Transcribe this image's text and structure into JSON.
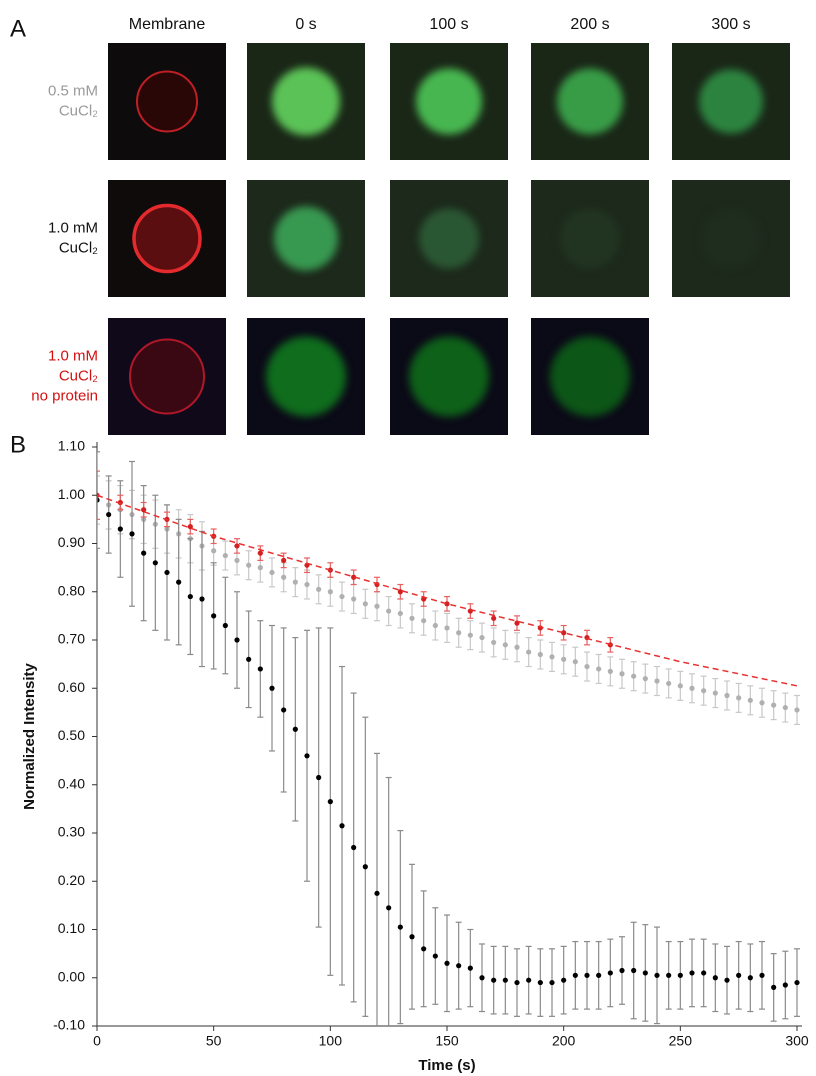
{
  "panels": {
    "a": "A",
    "b": "B"
  },
  "panel_a": {
    "columns": [
      "Membrane",
      "0 s",
      "100 s",
      "200 s",
      "300 s"
    ],
    "rows": [
      {
        "lines": [
          "0.5 mM",
          "CuCl₂"
        ]
      },
      {
        "lines": [
          "1.0 mM",
          "CuCl₂"
        ]
      },
      {
        "lines": [
          "1.0 mM",
          "CuCl₂",
          "no protein"
        ]
      }
    ]
  },
  "chart_data": {
    "type": "scatter",
    "xlabel": "Time (s)",
    "ylabel": "Normalized Intensity",
    "xlim": [
      0,
      300
    ],
    "ylim": [
      -0.1,
      1.1
    ],
    "xticks": [
      0,
      50,
      100,
      150,
      200,
      250,
      300
    ],
    "yticks": [
      {
        "value": 1.1,
        "label": "1.10"
      },
      {
        "value": 1.0,
        "label": "1.00"
      },
      {
        "value": 0.9,
        "label": "0.90"
      },
      {
        "value": 0.8,
        "label": "0.80"
      },
      {
        "value": 0.7,
        "label": "0.70"
      },
      {
        "value": 0.6,
        "label": "0.60"
      },
      {
        "value": 0.5,
        "label": "0.50"
      },
      {
        "value": 0.4,
        "label": "0.40"
      },
      {
        "value": 0.3,
        "label": "0.30"
      },
      {
        "value": 0.2,
        "label": "0.20"
      },
      {
        "value": 0.1,
        "label": "0.10"
      },
      {
        "value": 0.0,
        "label": "0.00"
      },
      {
        "value": -0.1,
        "label": "-0.10"
      }
    ],
    "series": [
      {
        "color": "#b0b0b0",
        "error_color": "#c8c8c8",
        "x": [
          0,
          5,
          10,
          15,
          20,
          25,
          30,
          35,
          40,
          45,
          50,
          55,
          60,
          65,
          70,
          75,
          80,
          85,
          90,
          95,
          100,
          105,
          110,
          115,
          120,
          125,
          130,
          135,
          140,
          145,
          150,
          155,
          160,
          165,
          170,
          175,
          180,
          185,
          190,
          195,
          200,
          205,
          210,
          215,
          220,
          225,
          230,
          235,
          240,
          245,
          250,
          255,
          260,
          265,
          270,
          275,
          280,
          285,
          290,
          295,
          300
        ],
        "values": [
          0.99,
          0.98,
          0.97,
          0.96,
          0.95,
          0.94,
          0.93,
          0.92,
          0.91,
          0.895,
          0.885,
          0.875,
          0.865,
          0.855,
          0.85,
          0.84,
          0.83,
          0.82,
          0.815,
          0.805,
          0.8,
          0.79,
          0.785,
          0.775,
          0.77,
          0.76,
          0.755,
          0.745,
          0.74,
          0.73,
          0.725,
          0.715,
          0.71,
          0.705,
          0.695,
          0.69,
          0.685,
          0.675,
          0.67,
          0.665,
          0.66,
          0.655,
          0.645,
          0.64,
          0.635,
          0.63,
          0.625,
          0.62,
          0.615,
          0.61,
          0.605,
          0.6,
          0.595,
          0.59,
          0.585,
          0.58,
          0.575,
          0.57,
          0.565,
          0.56,
          0.555
        ],
        "errors": [
          0.05,
          0.05,
          0.05,
          0.05,
          0.05,
          0.05,
          0.05,
          0.05,
          0.05,
          0.05,
          0.03,
          0.03,
          0.03,
          0.03,
          0.03,
          0.03,
          0.03,
          0.03,
          0.03,
          0.03,
          0.03,
          0.03,
          0.03,
          0.03,
          0.03,
          0.03,
          0.03,
          0.03,
          0.03,
          0.03,
          0.03,
          0.03,
          0.03,
          0.03,
          0.03,
          0.03,
          0.03,
          0.03,
          0.03,
          0.03,
          0.03,
          0.03,
          0.03,
          0.03,
          0.03,
          0.03,
          0.03,
          0.03,
          0.03,
          0.03,
          0.03,
          0.03,
          0.03,
          0.03,
          0.03,
          0.03,
          0.03,
          0.03,
          0.03,
          0.03,
          0.03
        ]
      },
      {
        "color": "#000000",
        "error_color": "#8a8a8a",
        "x": [
          0,
          5,
          10,
          15,
          20,
          25,
          30,
          35,
          40,
          45,
          50,
          55,
          60,
          65,
          70,
          75,
          80,
          85,
          90,
          95,
          100,
          105,
          110,
          115,
          120,
          125,
          130,
          135,
          140,
          145,
          150,
          155,
          160,
          165,
          170,
          175,
          180,
          185,
          190,
          195,
          200,
          205,
          210,
          215,
          220,
          225,
          230,
          235,
          240,
          245,
          250,
          255,
          260,
          265,
          270,
          275,
          280,
          285,
          290,
          295,
          300
        ],
        "values": [
          0.99,
          0.96,
          0.93,
          0.92,
          0.88,
          0.86,
          0.84,
          0.82,
          0.79,
          0.785,
          0.75,
          0.73,
          0.7,
          0.66,
          0.64,
          0.6,
          0.555,
          0.515,
          0.46,
          0.415,
          0.365,
          0.315,
          0.27,
          0.23,
          0.175,
          0.145,
          0.105,
          0.085,
          0.06,
          0.045,
          0.03,
          0.025,
          0.02,
          0.0,
          -0.005,
          -0.005,
          -0.01,
          -0.005,
          -0.01,
          -0.01,
          -0.005,
          0.005,
          0.005,
          0.005,
          0.01,
          0.015,
          0.015,
          0.01,
          0.005,
          0.005,
          0.005,
          0.01,
          0.01,
          0.0,
          -0.005,
          0.005,
          0.0,
          0.005,
          -0.02,
          -0.015,
          -0.01
        ],
        "errors": [
          0.1,
          0.08,
          0.1,
          0.15,
          0.14,
          0.14,
          0.14,
          0.13,
          0.12,
          0.14,
          0.11,
          0.1,
          0.1,
          0.1,
          0.1,
          0.13,
          0.17,
          0.19,
          0.26,
          0.31,
          0.36,
          0.33,
          0.32,
          0.31,
          0.29,
          0.27,
          0.2,
          0.15,
          0.12,
          0.1,
          0.1,
          0.09,
          0.08,
          0.07,
          0.07,
          0.07,
          0.07,
          0.07,
          0.07,
          0.07,
          0.07,
          0.07,
          0.07,
          0.07,
          0.07,
          0.07,
          0.1,
          0.1,
          0.1,
          0.07,
          0.07,
          0.07,
          0.07,
          0.07,
          0.07,
          0.07,
          0.07,
          0.07,
          0.07,
          0.07,
          0.07
        ]
      },
      {
        "color": "#d42020",
        "error_color": "#e86060",
        "x": [
          0,
          10,
          20,
          30,
          40,
          50,
          60,
          70,
          80,
          90,
          100,
          110,
          120,
          130,
          140,
          150,
          160,
          170,
          180,
          190,
          200,
          210,
          220
        ],
        "values": [
          1.0,
          0.985,
          0.97,
          0.95,
          0.935,
          0.915,
          0.895,
          0.88,
          0.865,
          0.855,
          0.845,
          0.83,
          0.815,
          0.8,
          0.785,
          0.775,
          0.76,
          0.745,
          0.735,
          0.725,
          0.715,
          0.705,
          0.69
        ],
        "errors": [
          0.05,
          0.015,
          0.015,
          0.015,
          0.015,
          0.015,
          0.015,
          0.015,
          0.015,
          0.015,
          0.015,
          0.015,
          0.015,
          0.015,
          0.015,
          0.015,
          0.015,
          0.015,
          0.015,
          0.015,
          0.015,
          0.015,
          0.015
        ]
      },
      {
        "color": "#e83030",
        "style": "dashed",
        "x": [
          0,
          50,
          100,
          150,
          200,
          250,
          300
        ],
        "values": [
          1.0,
          0.915,
          0.845,
          0.775,
          0.715,
          0.655,
          0.605
        ]
      }
    ]
  }
}
